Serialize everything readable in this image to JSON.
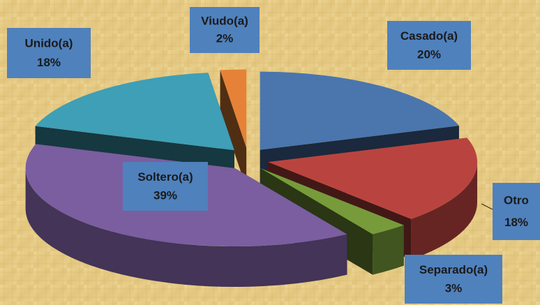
{
  "chart_data": {
    "type": "pie",
    "categories": [
      "Casado(a)",
      "Otro",
      "Separado(a)",
      "Soltero(a)",
      "Unido(a)",
      "Viudo(a)"
    ],
    "values": [
      20,
      18,
      3,
      39,
      18,
      2
    ],
    "value_labels": [
      "20%",
      "18%",
      "3%",
      "39%",
      "18%",
      "2%"
    ],
    "colors": [
      "#4a76ad",
      "#b9443f",
      "#779b3a",
      "#7a5ea0",
      "#3f9fb6",
      "#e58237"
    ]
  }
}
